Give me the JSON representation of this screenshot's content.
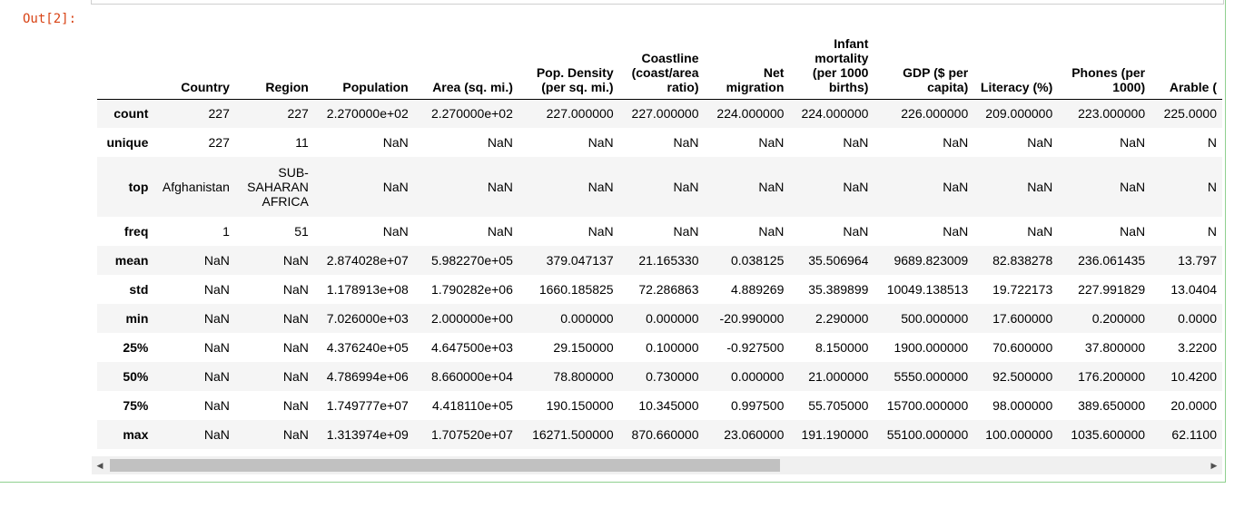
{
  "prompt": "Out[2]:",
  "table": {
    "columns": [
      "",
      "Country",
      "Region",
      "Population",
      "Area (sq. mi.)",
      "Pop. Density (per sq. mi.)",
      "Coastline (coast/area ratio)",
      "Net migration",
      "Infant mortality (per 1000 births)",
      "GDP ($ per capita)",
      "Literacy (%)",
      "Phones (per 1000)",
      "Arable ("
    ],
    "rows": [
      {
        "index": "count",
        "cells": [
          "227",
          "227",
          "2.270000e+02",
          "2.270000e+02",
          "227.000000",
          "227.000000",
          "224.000000",
          "224.000000",
          "226.000000",
          "209.000000",
          "223.000000",
          "225.0000"
        ]
      },
      {
        "index": "unique",
        "cells": [
          "227",
          "11",
          "NaN",
          "NaN",
          "NaN",
          "NaN",
          "NaN",
          "NaN",
          "NaN",
          "NaN",
          "NaN",
          "N"
        ]
      },
      {
        "index": "top",
        "cells": [
          "Afghanistan",
          "SUB-SAHARAN AFRICA",
          "NaN",
          "NaN",
          "NaN",
          "NaN",
          "NaN",
          "NaN",
          "NaN",
          "NaN",
          "NaN",
          "N"
        ]
      },
      {
        "index": "freq",
        "cells": [
          "1",
          "51",
          "NaN",
          "NaN",
          "NaN",
          "NaN",
          "NaN",
          "NaN",
          "NaN",
          "NaN",
          "NaN",
          "N"
        ]
      },
      {
        "index": "mean",
        "cells": [
          "NaN",
          "NaN",
          "2.874028e+07",
          "5.982270e+05",
          "379.047137",
          "21.165330",
          "0.038125",
          "35.506964",
          "9689.823009",
          "82.838278",
          "236.061435",
          "13.797"
        ]
      },
      {
        "index": "std",
        "cells": [
          "NaN",
          "NaN",
          "1.178913e+08",
          "1.790282e+06",
          "1660.185825",
          "72.286863",
          "4.889269",
          "35.389899",
          "10049.138513",
          "19.722173",
          "227.991829",
          "13.0404"
        ]
      },
      {
        "index": "min",
        "cells": [
          "NaN",
          "NaN",
          "7.026000e+03",
          "2.000000e+00",
          "0.000000",
          "0.000000",
          "-20.990000",
          "2.290000",
          "500.000000",
          "17.600000",
          "0.200000",
          "0.0000"
        ]
      },
      {
        "index": "25%",
        "cells": [
          "NaN",
          "NaN",
          "4.376240e+05",
          "4.647500e+03",
          "29.150000",
          "0.100000",
          "-0.927500",
          "8.150000",
          "1900.000000",
          "70.600000",
          "37.800000",
          "3.2200"
        ]
      },
      {
        "index": "50%",
        "cells": [
          "NaN",
          "NaN",
          "4.786994e+06",
          "8.660000e+04",
          "78.800000",
          "0.730000",
          "0.000000",
          "21.000000",
          "5550.000000",
          "92.500000",
          "176.200000",
          "10.4200"
        ]
      },
      {
        "index": "75%",
        "cells": [
          "NaN",
          "NaN",
          "1.749777e+07",
          "4.418110e+05",
          "190.150000",
          "10.345000",
          "0.997500",
          "55.705000",
          "15700.000000",
          "98.000000",
          "389.650000",
          "20.0000"
        ]
      },
      {
        "index": "max",
        "cells": [
          "NaN",
          "NaN",
          "1.313974e+09",
          "1.707520e+07",
          "16271.500000",
          "870.660000",
          "23.060000",
          "191.190000",
          "55100.000000",
          "100.000000",
          "1035.600000",
          "62.1100"
        ]
      }
    ]
  },
  "scrollbar": {
    "left_arrow": "◀",
    "right_arrow": "▶"
  }
}
